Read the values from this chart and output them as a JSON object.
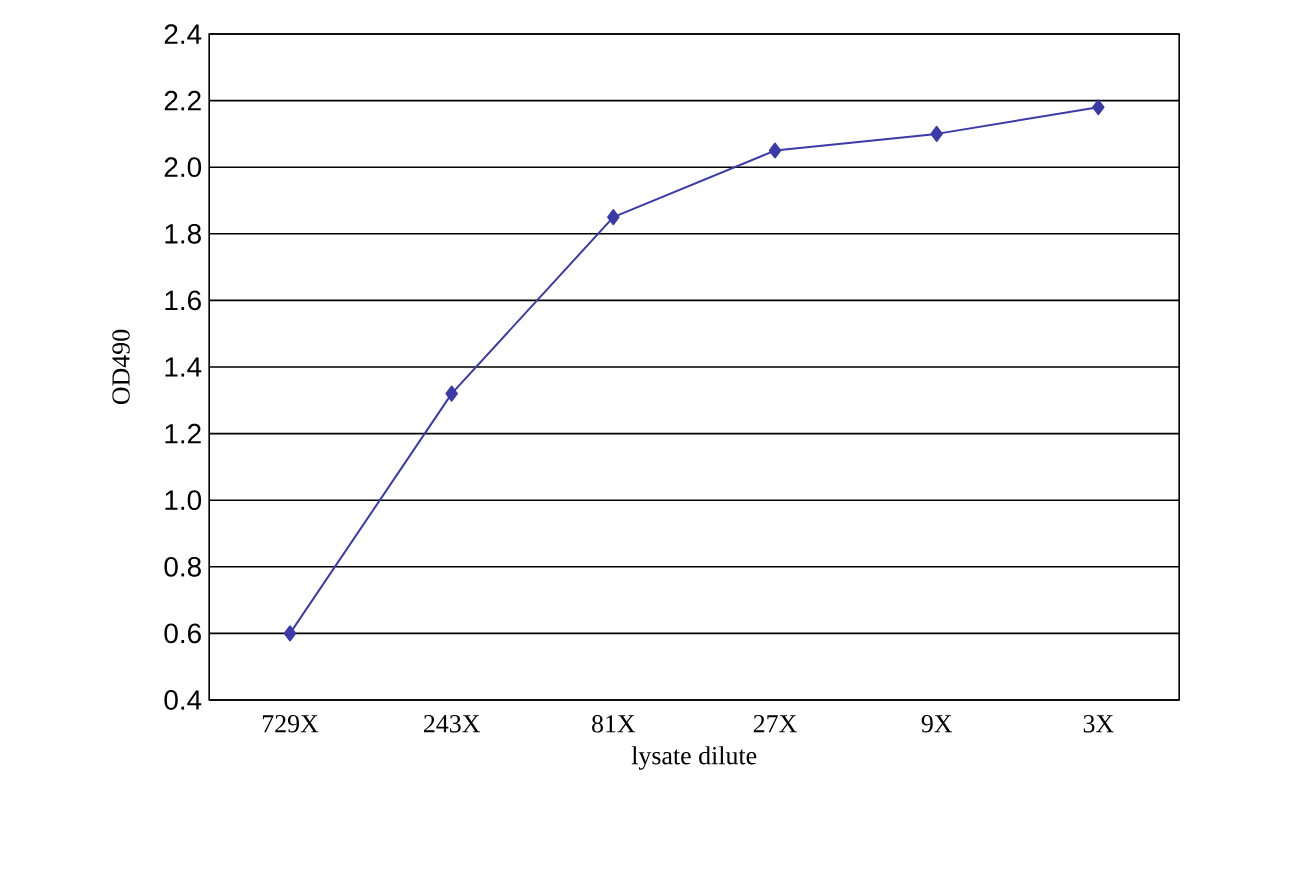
{
  "chart_data": {
    "type": "line",
    "xlabel": "lysate dilute",
    "ylabel": "OD490",
    "categories": [
      "729X",
      "243X",
      "81X",
      "27X",
      "9X",
      "3X"
    ],
    "series": [
      {
        "color": "#3a3aa8",
        "values": [
          0.6,
          1.32,
          1.85,
          2.05,
          2.1,
          2.18
        ]
      }
    ],
    "ylim": [
      0.4,
      2.4
    ],
    "yticks": [
      0.4,
      0.6,
      0.8,
      {
        "value": 1.0,
        "label": "1.0"
      },
      1.2,
      1.4,
      1.6,
      1.8,
      {
        "value": 2.0,
        "label": "2.0"
      },
      2.2,
      2.4
    ],
    "grid": "y",
    "marker": "diamond",
    "line_style": "solid"
  }
}
